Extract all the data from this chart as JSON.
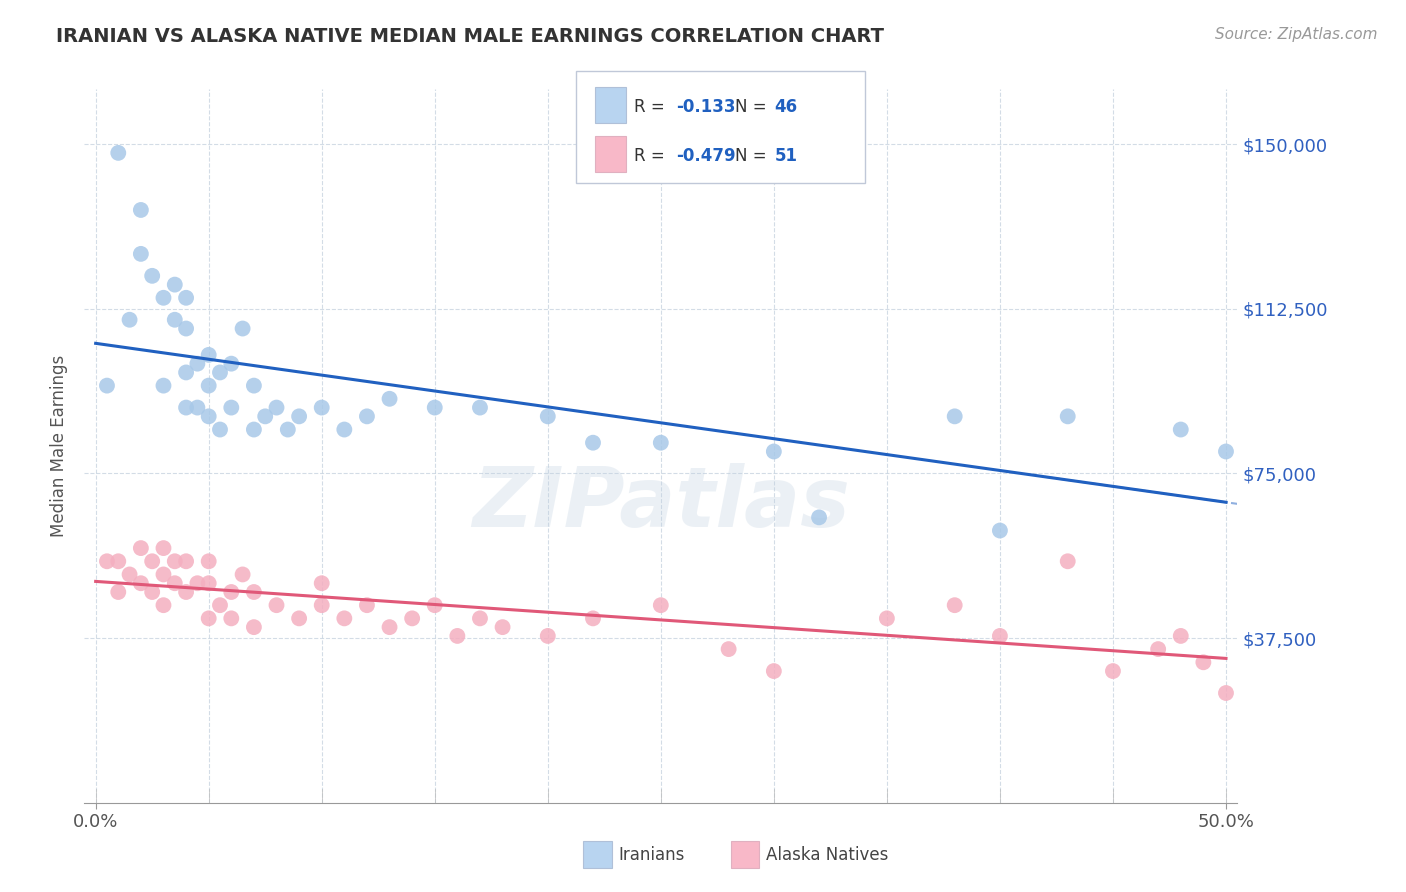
{
  "title": "IRANIAN VS ALASKA NATIVE MEDIAN MALE EARNINGS CORRELATION CHART",
  "source_text": "Source: ZipAtlas.com",
  "ylabel": "Median Male Earnings",
  "xlim": [
    -0.005,
    0.505
  ],
  "ylim": [
    0,
    162500
  ],
  "xtick_vals": [
    0.0,
    0.05,
    0.1,
    0.15,
    0.2,
    0.25,
    0.3,
    0.35,
    0.4,
    0.45,
    0.5
  ],
  "xtick_major": [
    0.0,
    0.5
  ],
  "xtick_major_labels": [
    "0.0%",
    "50.0%"
  ],
  "ytick_vals": [
    0,
    37500,
    75000,
    112500,
    150000
  ],
  "ytick_labels": [
    "",
    "$37,500",
    "$75,000",
    "$112,500",
    "$150,000"
  ],
  "iranian_color": "#a8c8e8",
  "alaska_color": "#f4afc0",
  "iranian_line_color": "#2060c0",
  "alaska_line_color": "#e05878",
  "legend_box_color_iranian": "#b8d4f0",
  "legend_box_color_alaska": "#f8b8c8",
  "r_iranian": -0.133,
  "n_iranian": 46,
  "r_alaska": -0.479,
  "n_alaska": 51,
  "grid_color": "#c8d4e0",
  "background_color": "#ffffff",
  "watermark_text": "ZIPatlas",
  "iranian_scatter_x": [
    0.005,
    0.01,
    0.015,
    0.02,
    0.02,
    0.025,
    0.03,
    0.03,
    0.035,
    0.035,
    0.04,
    0.04,
    0.04,
    0.04,
    0.045,
    0.045,
    0.05,
    0.05,
    0.05,
    0.055,
    0.055,
    0.06,
    0.06,
    0.065,
    0.07,
    0.07,
    0.075,
    0.08,
    0.085,
    0.09,
    0.1,
    0.11,
    0.12,
    0.13,
    0.15,
    0.17,
    0.2,
    0.22,
    0.25,
    0.3,
    0.32,
    0.38,
    0.4,
    0.43,
    0.48,
    0.5
  ],
  "iranian_scatter_y": [
    95000,
    148000,
    110000,
    125000,
    135000,
    120000,
    95000,
    115000,
    110000,
    118000,
    90000,
    98000,
    108000,
    115000,
    90000,
    100000,
    88000,
    95000,
    102000,
    85000,
    98000,
    90000,
    100000,
    108000,
    85000,
    95000,
    88000,
    90000,
    85000,
    88000,
    90000,
    85000,
    88000,
    92000,
    90000,
    90000,
    88000,
    82000,
    82000,
    80000,
    65000,
    88000,
    62000,
    88000,
    85000,
    80000
  ],
  "alaska_scatter_x": [
    0.005,
    0.01,
    0.01,
    0.015,
    0.02,
    0.02,
    0.025,
    0.025,
    0.03,
    0.03,
    0.03,
    0.035,
    0.035,
    0.04,
    0.04,
    0.045,
    0.05,
    0.05,
    0.05,
    0.055,
    0.06,
    0.06,
    0.065,
    0.07,
    0.07,
    0.08,
    0.09,
    0.1,
    0.1,
    0.11,
    0.12,
    0.13,
    0.14,
    0.15,
    0.16,
    0.17,
    0.18,
    0.2,
    0.22,
    0.25,
    0.28,
    0.3,
    0.35,
    0.38,
    0.4,
    0.43,
    0.45,
    0.47,
    0.48,
    0.49,
    0.5
  ],
  "alaska_scatter_y": [
    55000,
    48000,
    55000,
    52000,
    50000,
    58000,
    48000,
    55000,
    45000,
    52000,
    58000,
    50000,
    55000,
    48000,
    55000,
    50000,
    42000,
    50000,
    55000,
    45000,
    42000,
    48000,
    52000,
    40000,
    48000,
    45000,
    42000,
    45000,
    50000,
    42000,
    45000,
    40000,
    42000,
    45000,
    38000,
    42000,
    40000,
    38000,
    42000,
    45000,
    35000,
    30000,
    42000,
    45000,
    38000,
    55000,
    30000,
    35000,
    38000,
    32000,
    25000
  ]
}
